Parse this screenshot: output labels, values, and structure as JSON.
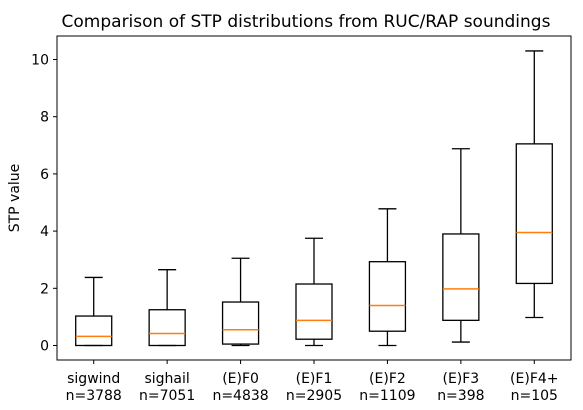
{
  "chart_data": {
    "type": "boxplot",
    "title": "Comparison of STP distributions from RUC/RAP soundings",
    "xlabel": "",
    "ylabel": "STP value",
    "ylim": [
      -0.5,
      10.8
    ],
    "yticks": [
      0,
      2,
      4,
      6,
      8,
      10
    ],
    "grid": false,
    "box_color": "#000000",
    "median_color": "#ff7f0e",
    "categories": [
      {
        "name": "sigwind",
        "count": "n=3788",
        "whisker_low": 0.0,
        "q1": 0.0,
        "median": 0.32,
        "q3": 1.03,
        "whisker_high": 2.38
      },
      {
        "name": "sighail",
        "count": "n=7051",
        "whisker_low": 0.0,
        "q1": 0.0,
        "median": 0.42,
        "q3": 1.25,
        "whisker_high": 2.65
      },
      {
        "name": "(E)F0",
        "count": "n=4838",
        "whisker_low": 0.0,
        "q1": 0.05,
        "median": 0.55,
        "q3": 1.52,
        "whisker_high": 3.05
      },
      {
        "name": "(E)F1",
        "count": "n=2905",
        "whisker_low": 0.0,
        "q1": 0.22,
        "median": 0.88,
        "q3": 2.15,
        "whisker_high": 3.75
      },
      {
        "name": "(E)F2",
        "count": "n=1109",
        "whisker_low": 0.0,
        "q1": 0.5,
        "median": 1.4,
        "q3": 2.93,
        "whisker_high": 4.78
      },
      {
        "name": "(E)F3",
        "count": "n=398",
        "whisker_low": 0.12,
        "q1": 0.88,
        "median": 1.98,
        "q3": 3.9,
        "whisker_high": 6.88
      },
      {
        "name": "(E)F4+",
        "count": "n=105",
        "whisker_low": 0.98,
        "q1": 2.17,
        "median": 3.95,
        "q3": 7.05,
        "whisker_high": 10.3
      }
    ]
  }
}
